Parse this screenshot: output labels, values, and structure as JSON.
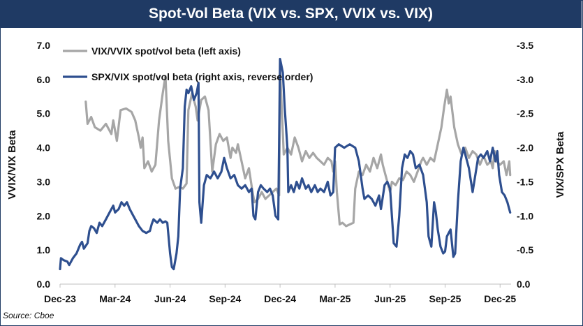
{
  "chart_data": {
    "type": "line",
    "title": "Spot-Vol Beta (VIX vs. SPX, VVIX vs. VIX)",
    "source": "Source: Cboe",
    "ylabel_left": "VVIX/VIX Beta",
    "ylabel_right": "VIX/SPX Beta",
    "ylim_left": [
      0,
      7
    ],
    "ylim_right": [
      0,
      -3.5
    ],
    "yticks_left": [
      "0.0",
      "1.0",
      "2.0",
      "3.0",
      "4.0",
      "5.0",
      "6.0",
      "7.0"
    ],
    "yticks_right": [
      "0.0",
      "-0.5",
      "-1.0",
      "-1.5",
      "-2.0",
      "-2.5",
      "-3.0",
      "-3.5"
    ],
    "xticks": [
      {
        "label": "Dec-23",
        "t": 0
      },
      {
        "label": "Mar-24",
        "t": 3
      },
      {
        "label": "Jun-24",
        "t": 6
      },
      {
        "label": "Sep-24",
        "t": 9
      },
      {
        "label": "Dec-24",
        "t": 12
      },
      {
        "label": "Mar-25",
        "t": 15
      },
      {
        "label": "Jun-25",
        "t": 18
      },
      {
        "label": "Sep-25",
        "t": 21
      },
      {
        "label": "Dec-25",
        "t": 24
      }
    ],
    "xlim": [
      0,
      24.6
    ],
    "series": [
      {
        "name": "VIX/VVIX spot/vol beta (left axis)",
        "axis": "left",
        "color": "#a6a6a6",
        "points": [
          [
            1.4,
            5.35
          ],
          [
            1.5,
            4.7
          ],
          [
            1.7,
            4.9
          ],
          [
            1.9,
            4.6
          ],
          [
            2.2,
            4.5
          ],
          [
            2.5,
            4.7
          ],
          [
            2.8,
            4.4
          ],
          [
            2.9,
            4.8
          ],
          [
            3.1,
            4.2
          ],
          [
            3.3,
            5.1
          ],
          [
            3.6,
            5.15
          ],
          [
            3.9,
            5.05
          ],
          [
            4.1,
            4.8
          ],
          [
            4.3,
            4.3
          ],
          [
            4.4,
            4.0
          ],
          [
            4.5,
            4.3
          ],
          [
            4.6,
            3.4
          ],
          [
            4.8,
            3.6
          ],
          [
            5.0,
            3.3
          ],
          [
            5.2,
            3.5
          ],
          [
            5.4,
            4.8
          ],
          [
            5.6,
            5.6
          ],
          [
            5.75,
            6.1
          ],
          [
            5.9,
            4.2
          ],
          [
            6.1,
            3.1
          ],
          [
            6.3,
            2.8
          ],
          [
            6.5,
            2.85
          ],
          [
            6.7,
            2.8
          ],
          [
            6.9,
            2.95
          ],
          [
            7.0,
            5.1
          ],
          [
            7.2,
            5.6
          ],
          [
            7.4,
            5.2
          ],
          [
            7.5,
            4.8
          ],
          [
            7.7,
            5.4
          ],
          [
            7.9,
            5.5
          ],
          [
            8.1,
            5.1
          ],
          [
            8.3,
            3.3
          ],
          [
            8.5,
            4.1
          ],
          [
            8.7,
            4.4
          ],
          [
            8.9,
            4.2
          ],
          [
            9.1,
            4.3
          ],
          [
            9.3,
            3.7
          ],
          [
            9.4,
            4.0
          ],
          [
            9.6,
            3.85
          ],
          [
            9.7,
            4.1
          ],
          [
            9.9,
            3.6
          ],
          [
            10.1,
            3.1
          ],
          [
            10.3,
            3.4
          ],
          [
            10.5,
            2.7
          ],
          [
            10.6,
            2.4
          ],
          [
            10.8,
            2.5
          ],
          [
            11.0,
            2.7
          ],
          [
            11.2,
            2.5
          ],
          [
            11.4,
            2.6
          ],
          [
            11.6,
            2.7
          ],
          [
            11.8,
            2.8
          ],
          [
            11.95,
            2.6
          ],
          [
            12.0,
            6.3
          ],
          [
            12.2,
            3.8
          ],
          [
            12.4,
            4.0
          ],
          [
            12.6,
            3.8
          ],
          [
            12.8,
            4.3
          ],
          [
            13.0,
            4.0
          ],
          [
            13.2,
            3.6
          ],
          [
            13.4,
            3.9
          ],
          [
            13.6,
            3.7
          ],
          [
            13.8,
            3.85
          ],
          [
            14.0,
            3.7
          ],
          [
            14.2,
            3.6
          ],
          [
            14.4,
            3.5
          ],
          [
            14.6,
            3.7
          ],
          [
            14.8,
            3.6
          ],
          [
            14.9,
            3.3
          ],
          [
            15.0,
            3.6
          ],
          [
            15.1,
            2.7
          ],
          [
            15.25,
            1.75
          ],
          [
            15.4,
            1.8
          ],
          [
            15.6,
            1.7
          ],
          [
            15.8,
            1.75
          ],
          [
            16.0,
            1.8
          ],
          [
            16.1,
            2.8
          ],
          [
            16.3,
            3.3
          ],
          [
            16.5,
            3.2
          ],
          [
            16.7,
            3.5
          ],
          [
            16.9,
            3.3
          ],
          [
            17.1,
            3.7
          ],
          [
            17.3,
            3.4
          ],
          [
            17.5,
            3.8
          ],
          [
            17.6,
            3.5
          ],
          [
            17.8,
            3.1
          ],
          [
            18.0,
            2.7
          ],
          [
            18.1,
            3.0
          ],
          [
            18.3,
            2.9
          ],
          [
            18.5,
            3.1
          ],
          [
            18.7,
            3.05
          ],
          [
            18.9,
            3.3
          ],
          [
            19.1,
            3.2
          ],
          [
            19.3,
            3.0
          ],
          [
            19.5,
            3.3
          ],
          [
            19.7,
            3.6
          ],
          [
            19.8,
            3.7
          ],
          [
            20.0,
            3.5
          ],
          [
            20.2,
            3.7
          ],
          [
            20.4,
            3.6
          ],
          [
            20.6,
            4.1
          ],
          [
            20.8,
            4.6
          ],
          [
            20.95,
            5.2
          ],
          [
            21.1,
            5.7
          ],
          [
            21.2,
            5.3
          ],
          [
            21.3,
            5.5
          ],
          [
            21.5,
            4.6
          ],
          [
            21.7,
            4.1
          ],
          [
            21.9,
            3.8
          ],
          [
            22.1,
            4.0
          ],
          [
            22.3,
            3.7
          ],
          [
            22.5,
            3.9
          ],
          [
            22.7,
            3.8
          ],
          [
            22.9,
            3.5
          ],
          [
            23.1,
            3.75
          ],
          [
            23.3,
            3.5
          ],
          [
            23.5,
            3.6
          ],
          [
            23.6,
            3.4
          ],
          [
            23.7,
            3.9
          ],
          [
            23.8,
            3.6
          ],
          [
            24.0,
            3.5
          ],
          [
            24.2,
            3.6
          ],
          [
            24.35,
            3.2
          ],
          [
            24.5,
            3.6
          ],
          [
            24.55,
            3.2
          ]
        ]
      },
      {
        "name": "SPX/VIX spot/vol beta (right axis, reverse order)",
        "axis": "right",
        "color": "#2e4f8f",
        "points": [
          [
            0.0,
            -0.22
          ],
          [
            0.05,
            -0.38
          ],
          [
            0.2,
            -0.35
          ],
          [
            0.4,
            -0.33
          ],
          [
            0.5,
            -0.28
          ],
          [
            0.7,
            -0.38
          ],
          [
            0.9,
            -0.45
          ],
          [
            1.1,
            -0.58
          ],
          [
            1.2,
            -0.62
          ],
          [
            1.3,
            -0.52
          ],
          [
            1.5,
            -0.6
          ],
          [
            1.6,
            -0.78
          ],
          [
            1.7,
            -0.85
          ],
          [
            1.85,
            -0.82
          ],
          [
            2.0,
            -0.75
          ],
          [
            2.15,
            -0.9
          ],
          [
            2.3,
            -0.85
          ],
          [
            2.5,
            -0.95
          ],
          [
            2.7,
            -1.05
          ],
          [
            2.9,
            -1.15
          ],
          [
            3.0,
            -1.05
          ],
          [
            3.2,
            -1.1
          ],
          [
            3.35,
            -1.2
          ],
          [
            3.5,
            -1.15
          ],
          [
            3.65,
            -1.2
          ],
          [
            3.8,
            -1.1
          ],
          [
            4.0,
            -1.0
          ],
          [
            4.1,
            -0.95
          ],
          [
            4.3,
            -0.85
          ],
          [
            4.5,
            -0.78
          ],
          [
            4.7,
            -0.75
          ],
          [
            4.9,
            -0.78
          ],
          [
            5.0,
            -0.88
          ],
          [
            5.1,
            -0.95
          ],
          [
            5.3,
            -0.9
          ],
          [
            5.45,
            -0.95
          ],
          [
            5.6,
            -0.9
          ],
          [
            5.75,
            -0.92
          ],
          [
            5.85,
            -0.9
          ],
          [
            6.0,
            -0.45
          ],
          [
            6.1,
            -0.25
          ],
          [
            6.2,
            -0.22
          ],
          [
            6.35,
            -0.45
          ],
          [
            6.45,
            -0.7
          ],
          [
            6.55,
            -1.4
          ],
          [
            6.7,
            -1.7
          ],
          [
            6.8,
            -2.6
          ],
          [
            6.9,
            -2.85
          ],
          [
            7.0,
            -2.8
          ],
          [
            7.15,
            -2.9
          ],
          [
            7.3,
            -2.7
          ],
          [
            7.45,
            -2.8
          ],
          [
            7.55,
            -2.95
          ],
          [
            7.6,
            -1.2
          ],
          [
            7.7,
            -0.9
          ],
          [
            7.85,
            -1.45
          ],
          [
            8.0,
            -1.6
          ],
          [
            8.2,
            -1.55
          ],
          [
            8.4,
            -1.65
          ],
          [
            8.6,
            -1.55
          ],
          [
            8.8,
            -1.65
          ],
          [
            8.95,
            -1.85
          ],
          [
            9.1,
            -1.7
          ],
          [
            9.3,
            -1.55
          ],
          [
            9.5,
            -1.6
          ],
          [
            9.7,
            -1.45
          ],
          [
            9.9,
            -1.4
          ],
          [
            10.1,
            -1.45
          ],
          [
            10.3,
            -1.35
          ],
          [
            10.45,
            -1.4
          ],
          [
            10.55,
            -1.0
          ],
          [
            10.65,
            -0.95
          ],
          [
            10.8,
            -1.35
          ],
          [
            10.95,
            -1.45
          ],
          [
            11.1,
            -1.4
          ],
          [
            11.3,
            -1.35
          ],
          [
            11.45,
            -1.4
          ],
          [
            11.6,
            -1.3
          ],
          [
            11.75,
            -1.0
          ],
          [
            11.9,
            -0.95
          ],
          [
            12.0,
            -3.3
          ],
          [
            12.15,
            -3.1
          ],
          [
            12.25,
            -2.6
          ],
          [
            12.4,
            -2.0
          ],
          [
            12.45,
            -1.35
          ],
          [
            12.6,
            -1.45
          ],
          [
            12.75,
            -1.35
          ],
          [
            12.9,
            -1.5
          ],
          [
            13.05,
            -1.4
          ],
          [
            13.2,
            -1.55
          ],
          [
            13.4,
            -1.4
          ],
          [
            13.55,
            -1.45
          ],
          [
            13.7,
            -1.35
          ],
          [
            13.9,
            -1.45
          ],
          [
            14.05,
            -1.35
          ],
          [
            14.2,
            -1.4
          ],
          [
            14.4,
            -1.35
          ],
          [
            14.6,
            -1.5
          ],
          [
            14.75,
            -1.3
          ],
          [
            14.9,
            -1.35
          ],
          [
            15.0,
            -2.0
          ],
          [
            15.2,
            -2.05
          ],
          [
            15.5,
            -2.0
          ],
          [
            15.8,
            -2.05
          ],
          [
            16.1,
            -2.0
          ],
          [
            16.3,
            -1.8
          ],
          [
            16.5,
            -1.4
          ],
          [
            16.6,
            -1.25
          ],
          [
            16.8,
            -1.3
          ],
          [
            17.0,
            -1.25
          ],
          [
            17.2,
            -1.15
          ],
          [
            17.4,
            -1.3
          ],
          [
            17.5,
            -1.1
          ],
          [
            17.7,
            -1.45
          ],
          [
            17.85,
            -1.5
          ],
          [
            18.0,
            -1.4
          ],
          [
            18.1,
            -1.0
          ],
          [
            18.2,
            -0.6
          ],
          [
            18.35,
            -0.55
          ],
          [
            18.5,
            -1.0
          ],
          [
            18.65,
            -1.7
          ],
          [
            18.8,
            -1.9
          ],
          [
            18.95,
            -1.85
          ],
          [
            19.1,
            -1.95
          ],
          [
            19.25,
            -1.9
          ],
          [
            19.4,
            -1.7
          ],
          [
            19.6,
            -1.75
          ],
          [
            19.8,
            -1.6
          ],
          [
            20.0,
            -1.2
          ],
          [
            20.1,
            -0.7
          ],
          [
            20.25,
            -0.55
          ],
          [
            20.4,
            -1.2
          ],
          [
            20.5,
            -1.05
          ],
          [
            20.6,
            -0.8
          ],
          [
            20.75,
            -0.55
          ],
          [
            20.9,
            -0.45
          ],
          [
            21.0,
            -0.48
          ],
          [
            21.1,
            -0.7
          ],
          [
            21.3,
            -0.8
          ],
          [
            21.45,
            -0.4
          ],
          [
            21.55,
            -0.45
          ],
          [
            21.7,
            -1.2
          ],
          [
            21.85,
            -1.8
          ],
          [
            22.0,
            -2.0
          ],
          [
            22.15,
            -1.85
          ],
          [
            22.3,
            -1.7
          ],
          [
            22.5,
            -1.35
          ],
          [
            22.65,
            -1.6
          ],
          [
            22.8,
            -1.85
          ],
          [
            22.95,
            -1.9
          ],
          [
            23.1,
            -1.85
          ],
          [
            23.3,
            -1.95
          ],
          [
            23.45,
            -1.8
          ],
          [
            23.6,
            -2.0
          ],
          [
            23.75,
            -1.8
          ],
          [
            23.85,
            -1.95
          ],
          [
            23.95,
            -1.6
          ],
          [
            24.1,
            -1.35
          ],
          [
            24.25,
            -1.3
          ],
          [
            24.4,
            -1.2
          ],
          [
            24.55,
            -1.05
          ]
        ]
      }
    ]
  }
}
